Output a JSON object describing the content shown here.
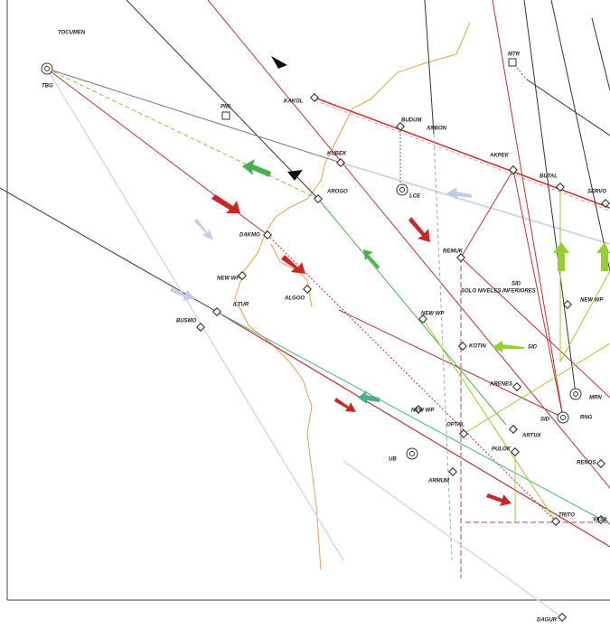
{
  "waypoints": [
    {
      "label": "TOCUMEN"
    },
    {
      "label": "TBG"
    },
    {
      "label": "PML"
    },
    {
      "label": "KAKOL"
    },
    {
      "label": "BUDUM"
    },
    {
      "label": "ANBON"
    },
    {
      "label": "MTR"
    },
    {
      "label": "AKPEK"
    },
    {
      "label": "BUTAL"
    },
    {
      "label": "SERVO"
    },
    {
      "label": "KUBEK"
    },
    {
      "label": "AROGO"
    },
    {
      "label": "LCE"
    },
    {
      "label": "DAKMO"
    },
    {
      "label": "NEW WP"
    },
    {
      "label": "REMUK"
    },
    {
      "label": "SID"
    },
    {
      "label": "SOLO NIVELES INFERIORES"
    },
    {
      "label": "ILTUR"
    },
    {
      "label": "BUSMO"
    },
    {
      "label": "ALGOO"
    },
    {
      "label": "NEW WP"
    },
    {
      "label": "KOTIN"
    },
    {
      "label": "SID"
    },
    {
      "label": "NEW WP"
    },
    {
      "label": "ARENES"
    },
    {
      "label": "MRN"
    },
    {
      "label": "RNG"
    },
    {
      "label": "NEW WP"
    },
    {
      "label": "OPTAL"
    },
    {
      "label": "ARTUX"
    },
    {
      "label": "SID"
    },
    {
      "label": "PULOK"
    },
    {
      "label": "UB"
    },
    {
      "label": "ARMUM"
    },
    {
      "label": "TRITO"
    },
    {
      "label": "RENOS"
    },
    {
      "label": "VASIL"
    },
    {
      "label": "DAGUR"
    }
  ]
}
